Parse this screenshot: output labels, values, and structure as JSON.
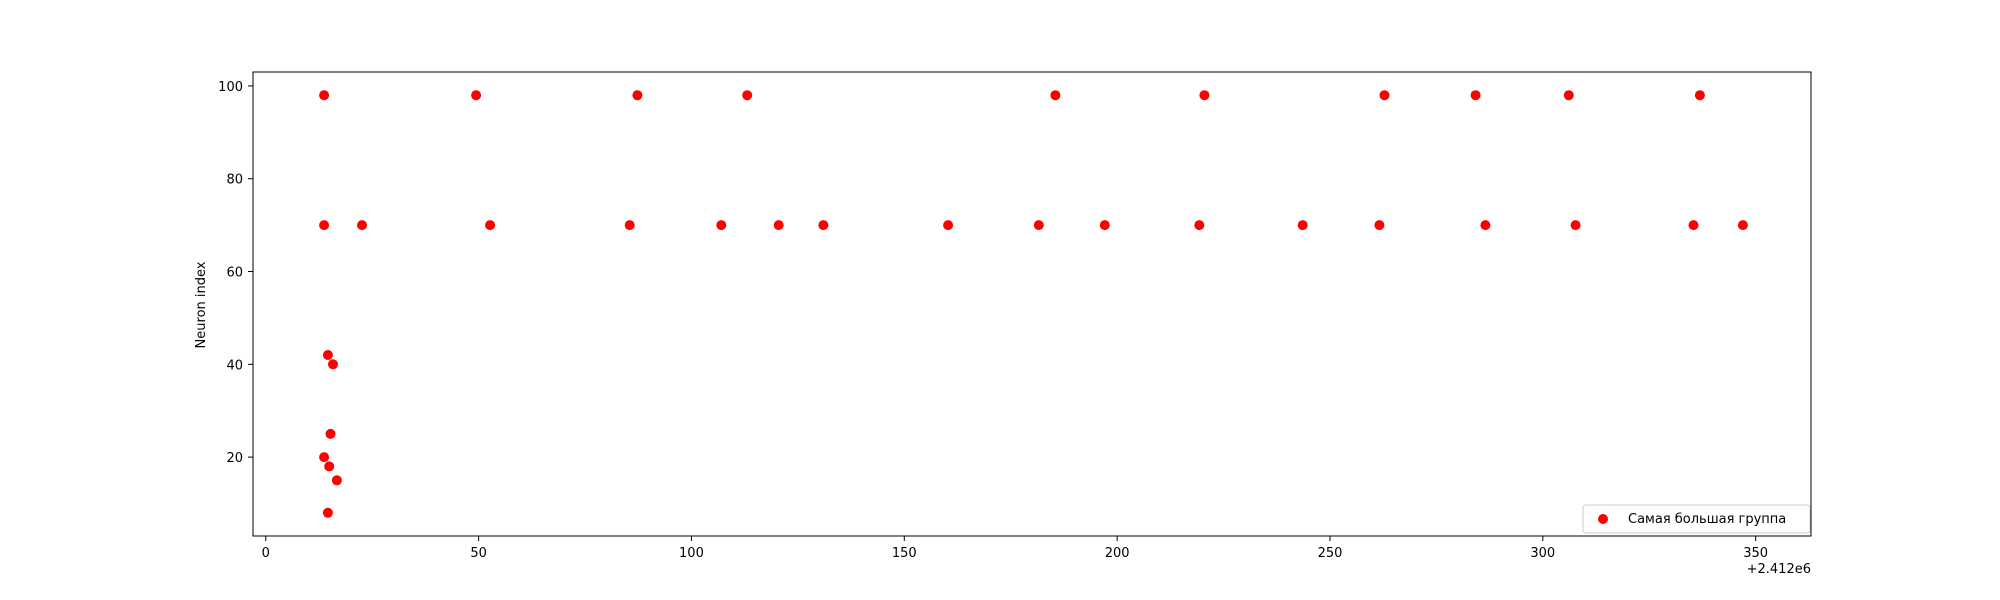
{
  "chart_data": {
    "type": "scatter",
    "title": "",
    "xlabel": "",
    "ylabel": "Neuron index",
    "x_offset_label": "+2.412e6",
    "xlim": [
      -3,
      363
    ],
    "ylim": [
      3,
      103
    ],
    "x_ticks": [
      0,
      50,
      100,
      150,
      200,
      250,
      300,
      350
    ],
    "y_ticks": [
      20,
      40,
      60,
      80,
      100
    ],
    "grid": false,
    "legend_position": "lower-right",
    "series": [
      {
        "name": "Самая большая группа",
        "color": "#ff0000",
        "points": [
          {
            "x": 13.7,
            "y": 98
          },
          {
            "x": 49.4,
            "y": 98
          },
          {
            "x": 87.3,
            "y": 98
          },
          {
            "x": 113.1,
            "y": 98
          },
          {
            "x": 185.5,
            "y": 98
          },
          {
            "x": 220.5,
            "y": 98
          },
          {
            "x": 262.8,
            "y": 98
          },
          {
            "x": 284.2,
            "y": 98
          },
          {
            "x": 306.1,
            "y": 98
          },
          {
            "x": 336.9,
            "y": 98
          },
          {
            "x": 13.7,
            "y": 70
          },
          {
            "x": 22.6,
            "y": 70
          },
          {
            "x": 52.7,
            "y": 70
          },
          {
            "x": 85.5,
            "y": 70
          },
          {
            "x": 107.0,
            "y": 70
          },
          {
            "x": 120.5,
            "y": 70
          },
          {
            "x": 131.0,
            "y": 70
          },
          {
            "x": 160.3,
            "y": 70
          },
          {
            "x": 181.6,
            "y": 70
          },
          {
            "x": 197.1,
            "y": 70
          },
          {
            "x": 219.3,
            "y": 70
          },
          {
            "x": 243.6,
            "y": 70
          },
          {
            "x": 261.6,
            "y": 70
          },
          {
            "x": 286.5,
            "y": 70
          },
          {
            "x": 307.7,
            "y": 70
          },
          {
            "x": 335.4,
            "y": 70
          },
          {
            "x": 347.0,
            "y": 70
          },
          {
            "x": 14.6,
            "y": 42
          },
          {
            "x": 15.8,
            "y": 40
          },
          {
            "x": 15.2,
            "y": 25
          },
          {
            "x": 13.7,
            "y": 20
          },
          {
            "x": 14.9,
            "y": 18
          },
          {
            "x": 16.7,
            "y": 15
          },
          {
            "x": 14.6,
            "y": 8
          }
        ]
      }
    ]
  }
}
